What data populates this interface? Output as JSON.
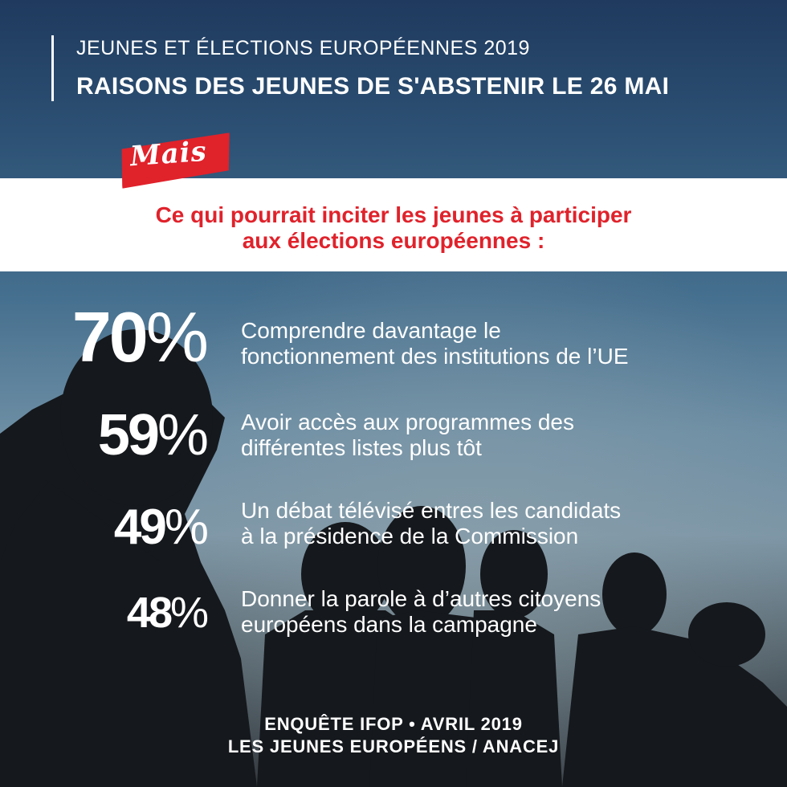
{
  "header": {
    "supertitle": "JEUNES ET ÉLECTIONS EUROPÉENNES 2019",
    "title": "RAISONS DES JEUNES DE S'ABSTENIR LE 26 MAI"
  },
  "badge": "Mais",
  "band": {
    "line1": "Ce qui pourrait inciter les jeunes à participer",
    "line2": "aux élections européennes :"
  },
  "chart_data": {
    "type": "table",
    "title": "Ce qui pourrait inciter les jeunes à participer aux élections européennes :",
    "items": [
      {
        "value": "70",
        "unit": "%",
        "line1": "Comprendre davantage le",
        "line2": "fonctionnement des institutions de l’UE"
      },
      {
        "value": "59",
        "unit": "%",
        "line1": "Avoir accès aux programmes des",
        "line2": "différentes listes plus tôt"
      },
      {
        "value": "49",
        "unit": "%",
        "line1": "Un débat télévisé entres les candidats",
        "line2": "à la présidence de la Commission"
      },
      {
        "value": "48",
        "unit": "%",
        "line1": "Donner la parole à d’autres citoyens",
        "line2": "européens dans la campagne"
      }
    ]
  },
  "footer": {
    "line1": "ENQUÊTE IFOP • AVRIL 2019",
    "line2": "LES JEUNES EUROPÉENS / ANACEJ"
  },
  "colors": {
    "accent": "#e0222b",
    "text": "#ffffff",
    "silhouette": "#15181c"
  }
}
